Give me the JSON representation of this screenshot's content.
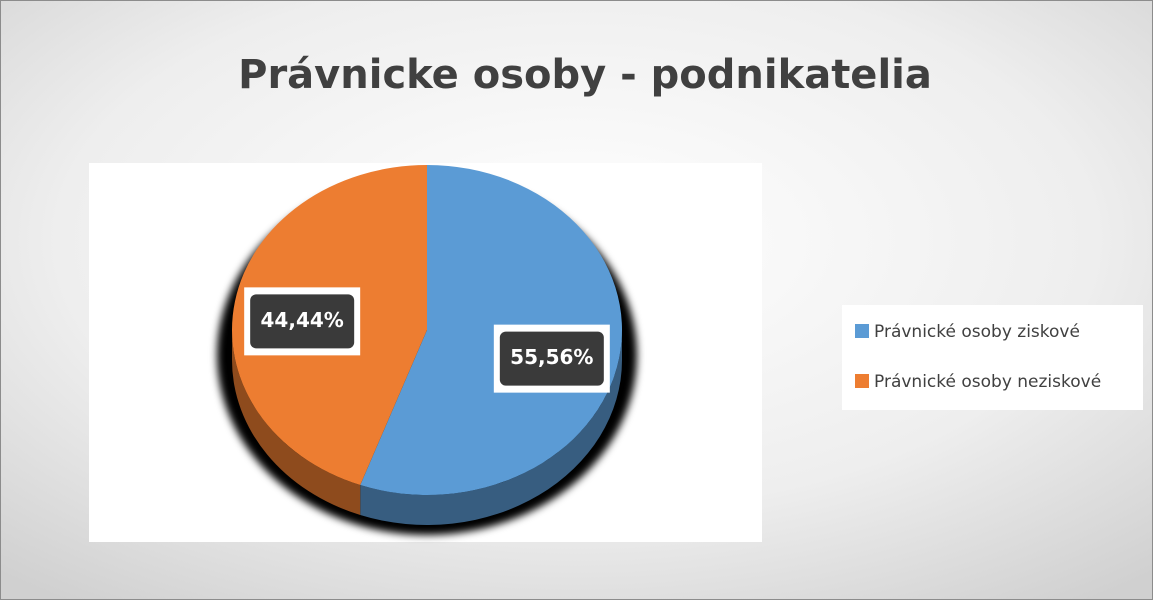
{
  "chart_data": {
    "type": "pie",
    "title": "Právnicke osoby - podnikatelia",
    "categories": [
      "Právnické osoby ziskové",
      "Právnické osoby neziskové"
    ],
    "values": [
      55.56,
      44.44
    ],
    "value_labels": [
      "55,56%",
      "44,44%"
    ],
    "colors": [
      "#5b9bd5",
      "#ed7d31"
    ],
    "legend": "right"
  }
}
